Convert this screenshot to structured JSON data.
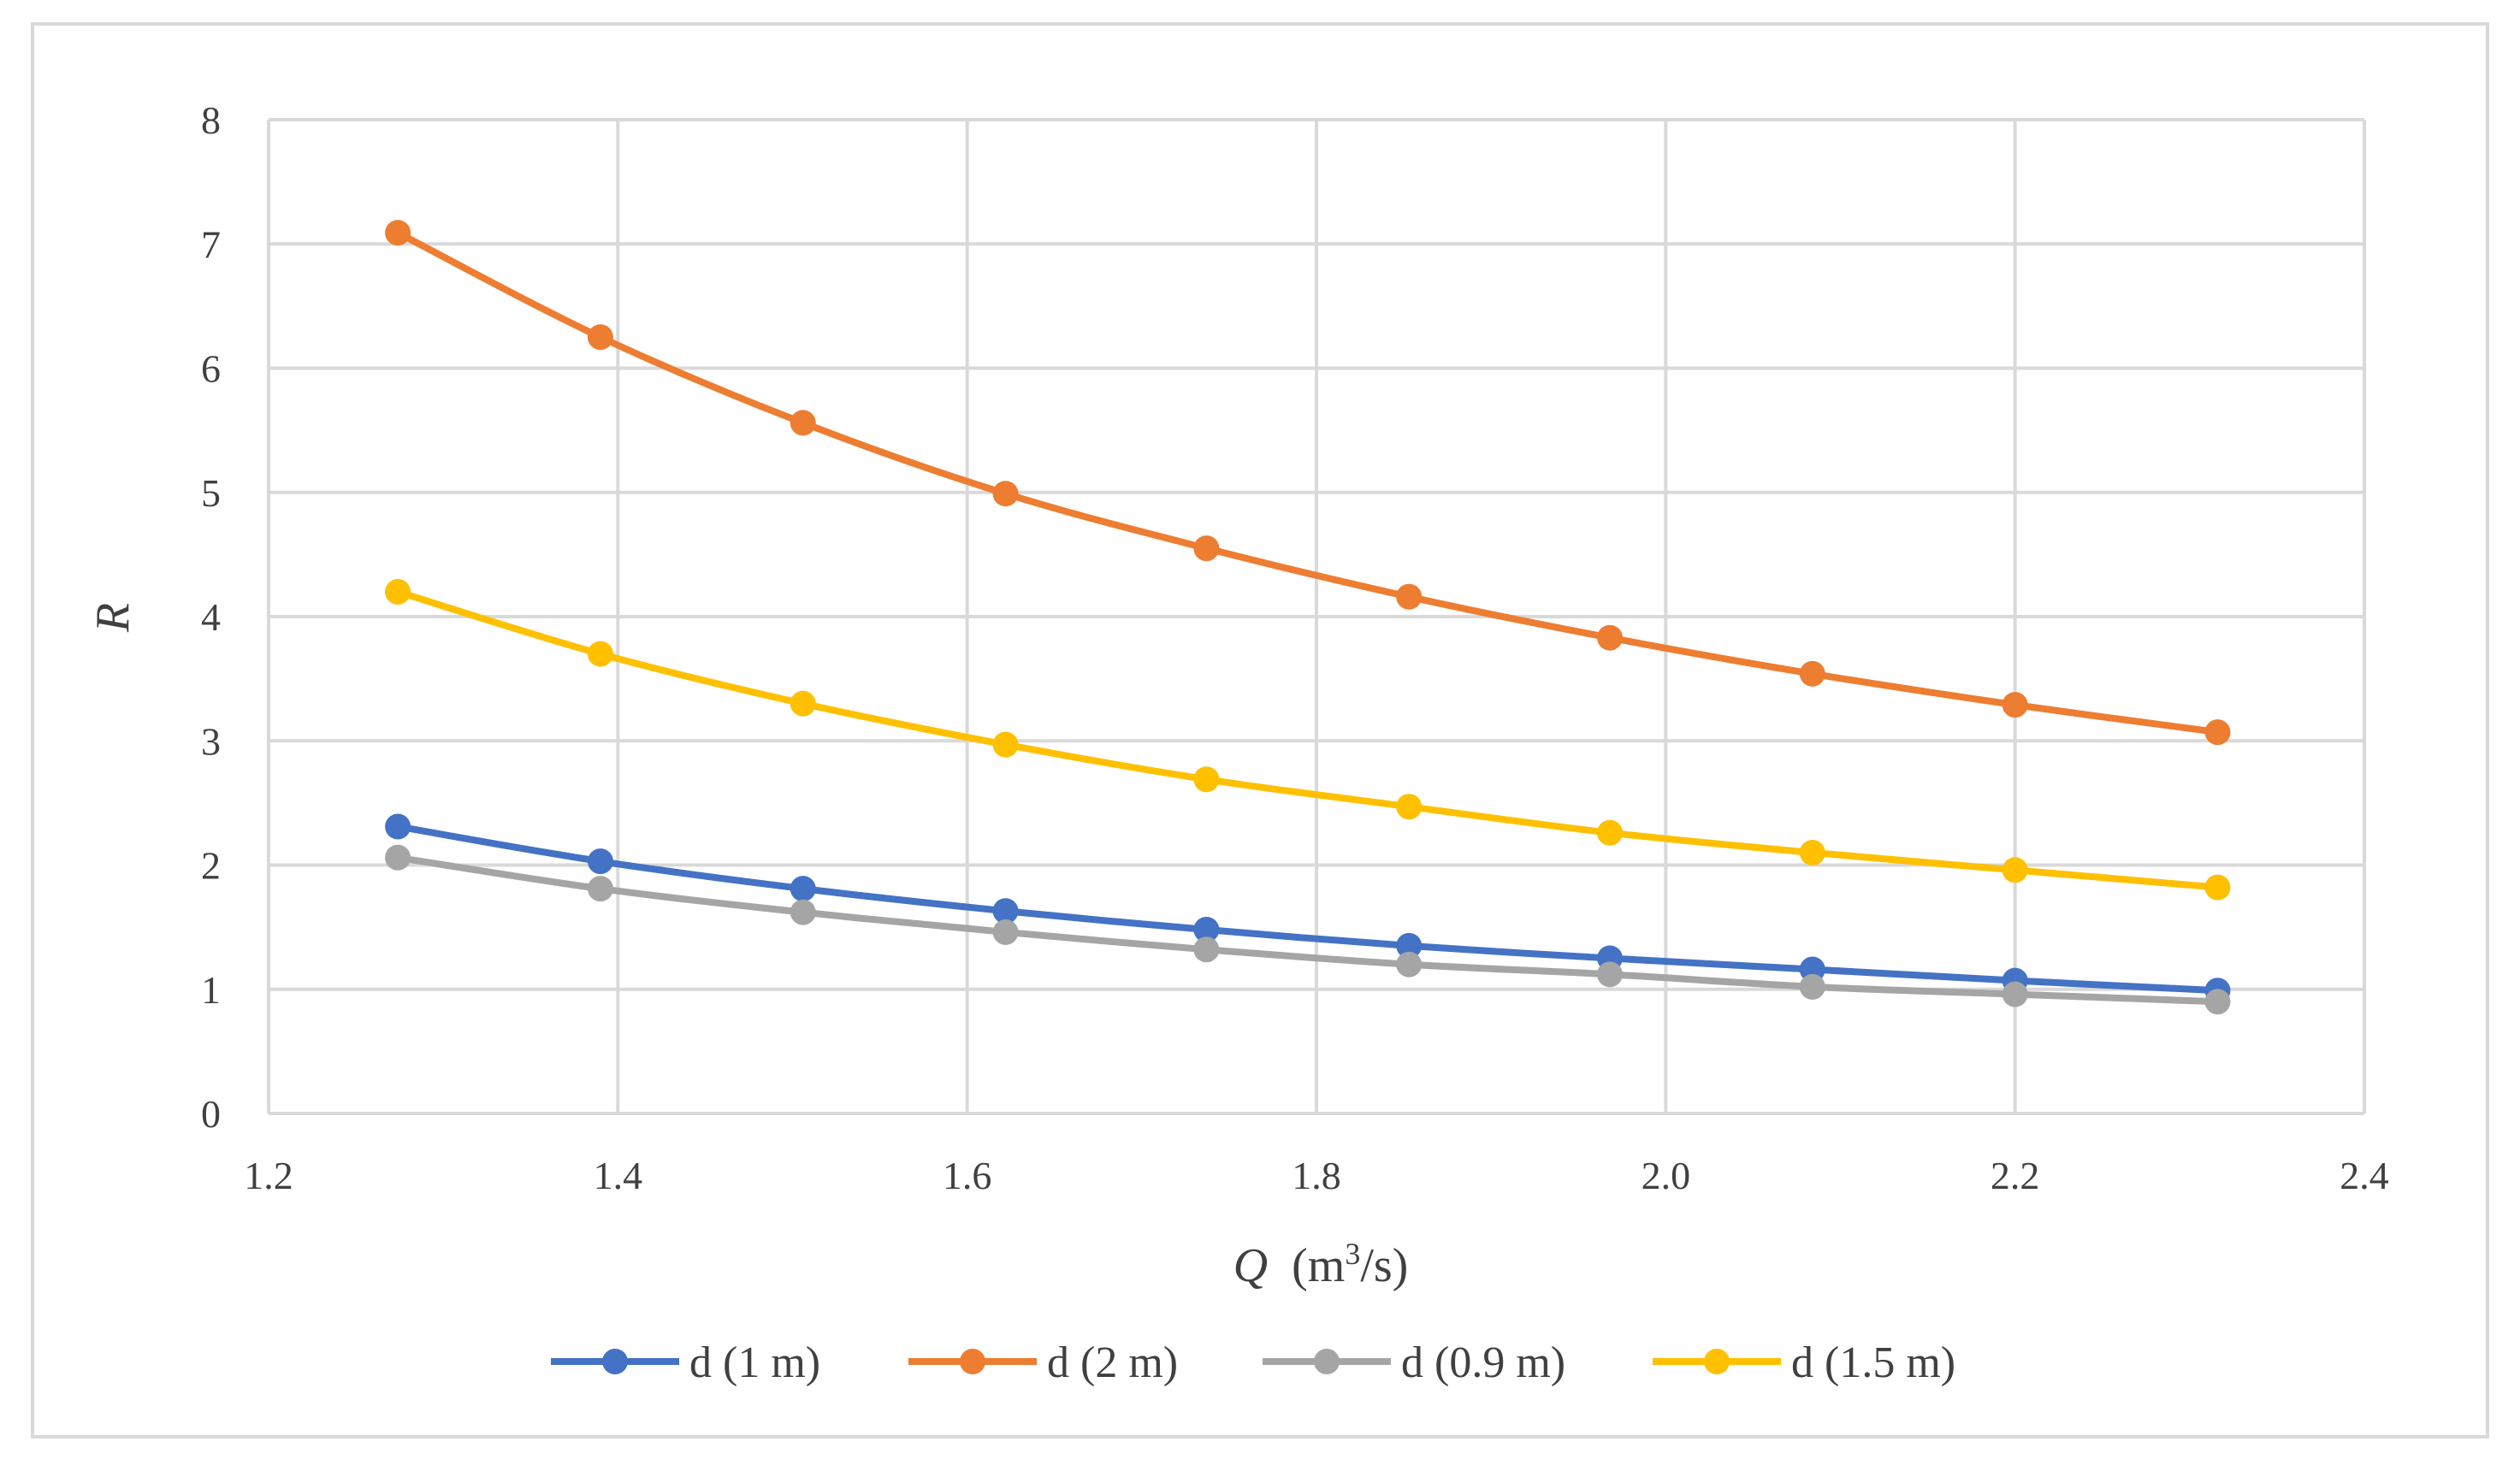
{
  "chart_data": {
    "type": "line",
    "title": "",
    "xlabel": {
      "var": "Q",
      "unit_pre": "(m",
      "unit_sup": "3",
      "unit_post": "/s)"
    },
    "ylabel": "R",
    "xlim": [
      1.2,
      2.4
    ],
    "ylim": [
      0,
      8
    ],
    "xticks": [
      1.2,
      1.4,
      1.6,
      1.8,
      2.0,
      2.2,
      2.4
    ],
    "xtick_labels": [
      "1.2",
      "1.4",
      "1.6",
      "1.8",
      "2.0",
      "2.2",
      "2.4"
    ],
    "yticks": [
      0,
      1,
      2,
      3,
      4,
      5,
      6,
      7,
      8
    ],
    "ytick_labels": [
      "0",
      "1",
      "2",
      "3",
      "4",
      "5",
      "6",
      "7",
      "8"
    ],
    "grid": true,
    "legend_position": "bottom",
    "x": [
      1.274,
      1.39,
      1.506,
      1.622,
      1.737,
      1.853,
      1.968,
      2.084,
      2.2,
      2.316
    ],
    "series": [
      {
        "name": "d (1 m)",
        "color": "#4472c4",
        "values": [
          2.31,
          2.03,
          1.81,
          1.63,
          1.48,
          1.35,
          1.25,
          1.16,
          1.07,
          0.99
        ]
      },
      {
        "name": "d (2 m)",
        "color": "#ed7d31",
        "values": [
          7.09,
          6.25,
          5.56,
          4.99,
          4.55,
          4.16,
          3.83,
          3.54,
          3.29,
          3.07
        ]
      },
      {
        "name": "d (0.9 m)",
        "color": "#a5a5a5",
        "values": [
          2.06,
          1.81,
          1.62,
          1.46,
          1.32,
          1.2,
          1.12,
          1.02,
          0.96,
          0.9
        ]
      },
      {
        "name": "d (1.5 m)",
        "color": "#ffc000",
        "values": [
          4.2,
          3.7,
          3.3,
          2.97,
          2.69,
          2.47,
          2.26,
          2.1,
          1.96,
          1.82
        ]
      }
    ]
  }
}
